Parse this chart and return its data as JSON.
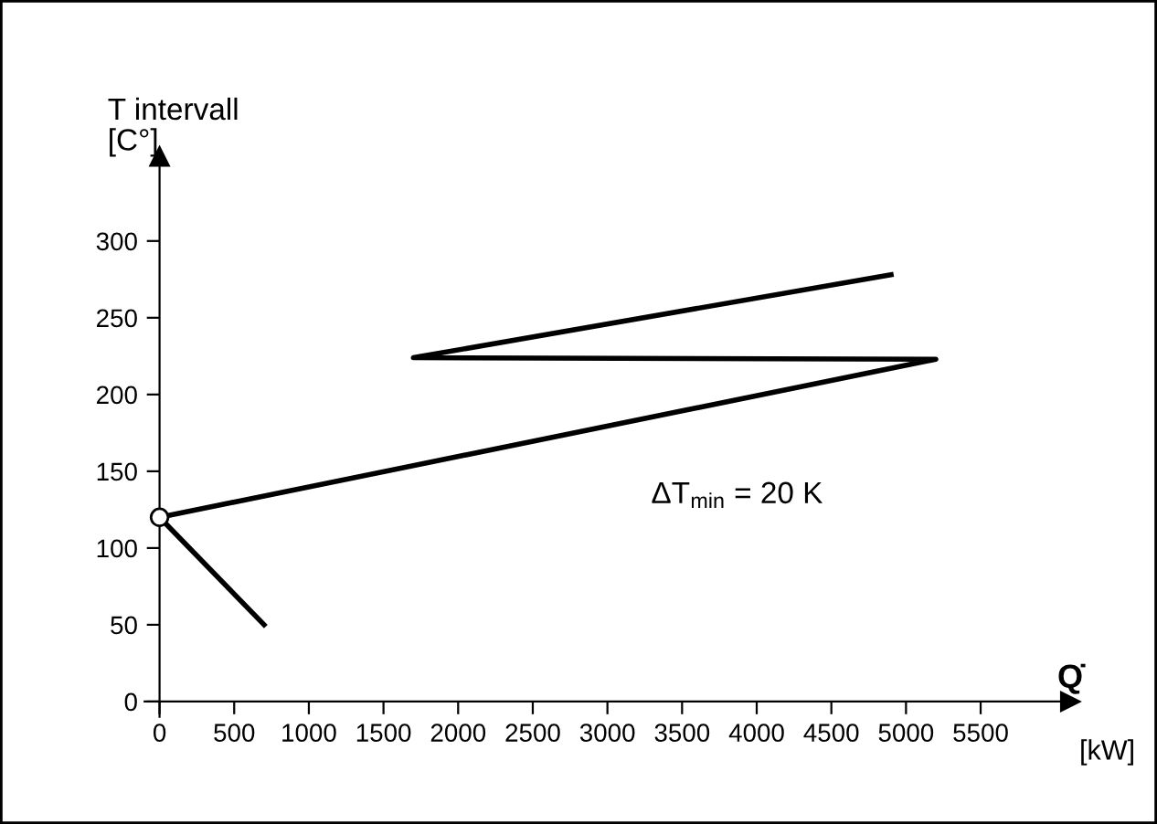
{
  "chart_data": {
    "type": "line",
    "xlabel": "[kW]",
    "ylabel": "T intervall\n[C°]",
    "annotations": [
      "Q̇",
      "ΔT$_{min}$ = 20 K"
    ],
    "series": [
      {
        "color": "#000000",
        "x": [
          700,
          0,
          5200,
          1700,
          4900
        ],
        "values": [
          50,
          120,
          223,
          224,
          278
        ],
        "marker": "none"
      },
      {
        "type": "scatter",
        "color": "#ffffff",
        "x": [
          0
        ],
        "values": [
          120
        ],
        "marker": "circle"
      }
    ],
    "xlim": [
      -100,
      6100
    ],
    "ylim": [
      -10,
      355
    ],
    "xticks": [
      0,
      500,
      1000,
      1500,
      2000,
      2500,
      3000,
      3500,
      4000,
      4500,
      5000,
      5500
    ],
    "yticks": [
      0,
      50,
      100,
      150,
      200,
      250,
      300
    ],
    "grid": false,
    "legend": false
  }
}
